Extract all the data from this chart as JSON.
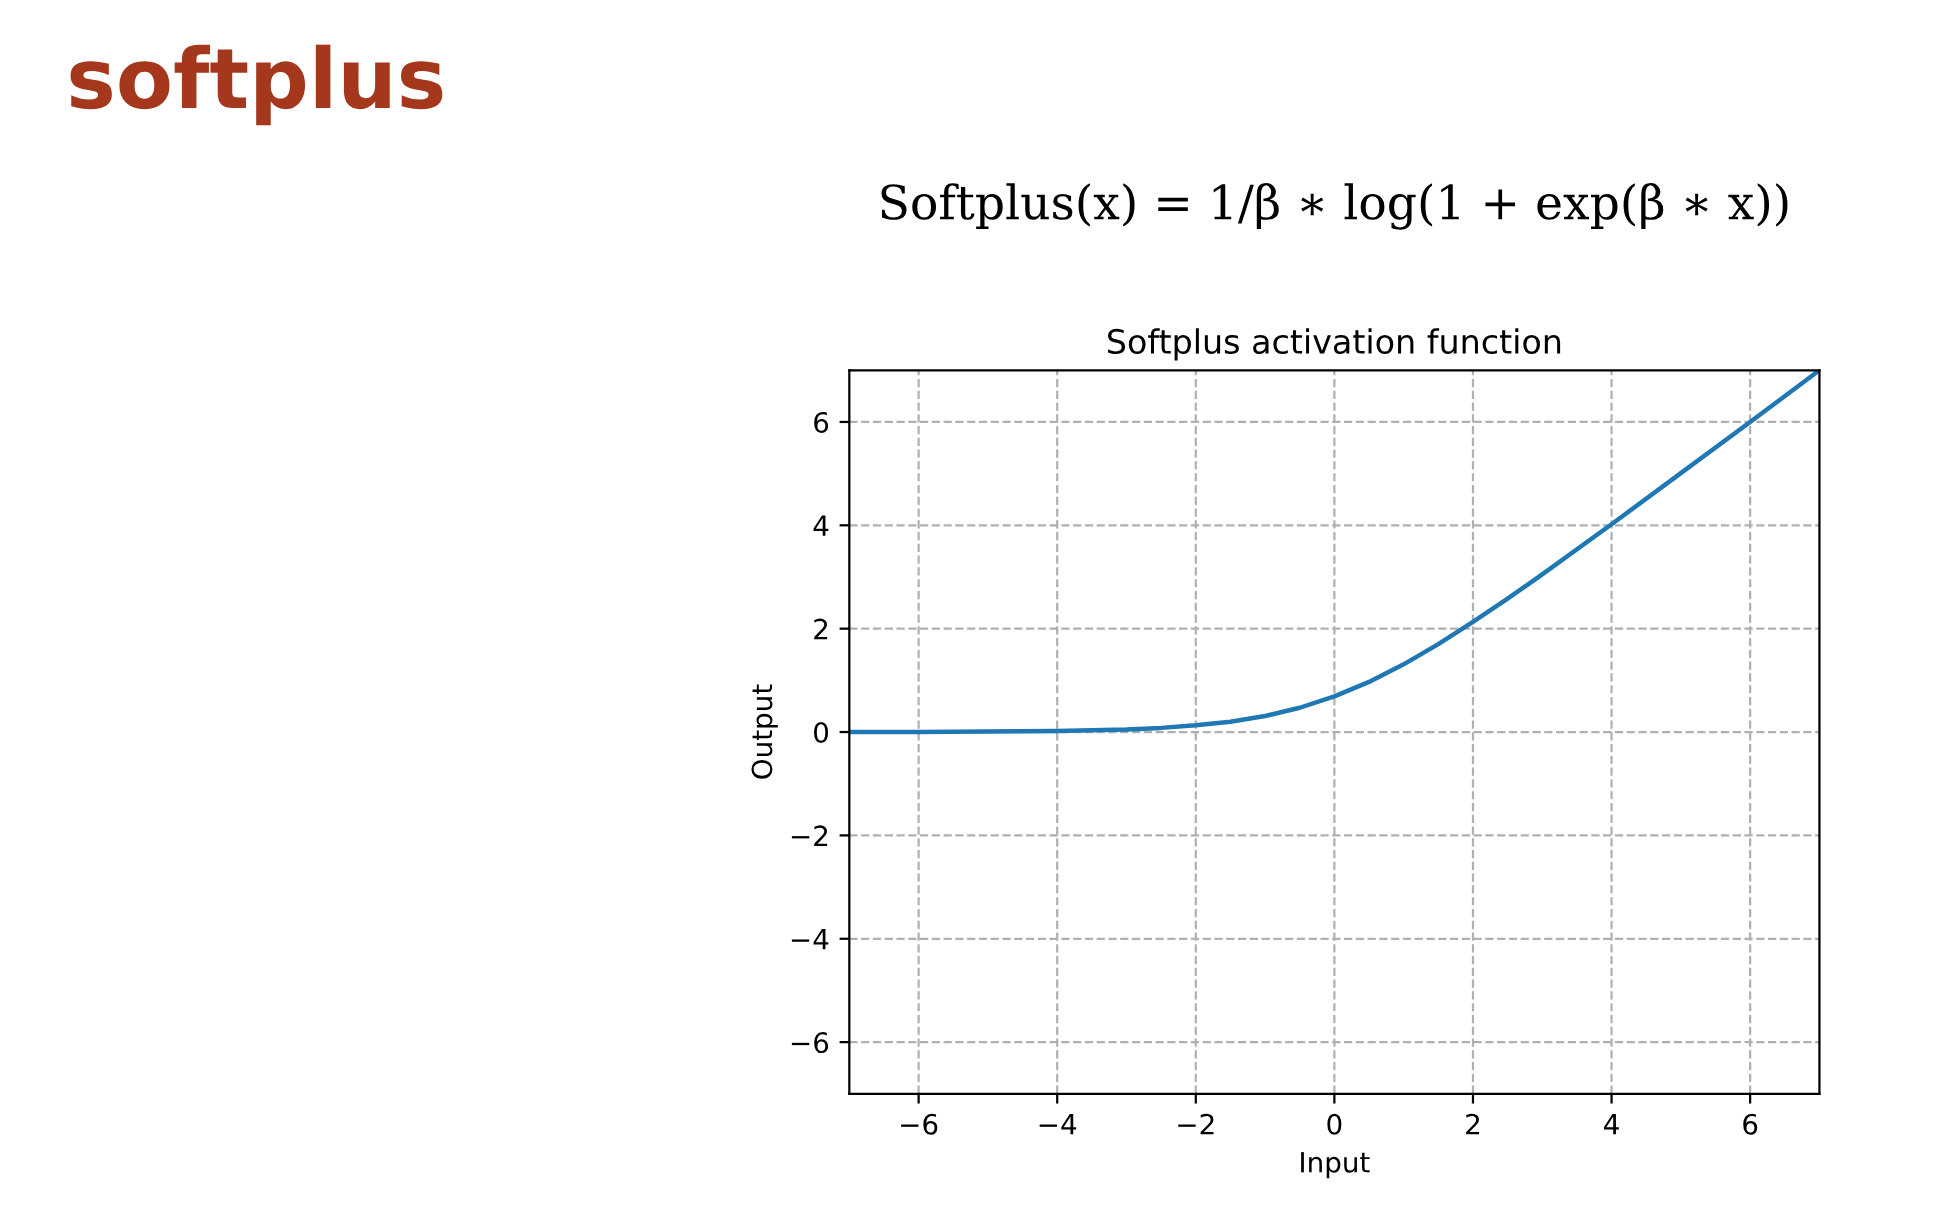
{
  "chart_data": {
    "type": "line",
    "title": "softplus",
    "subtitle": "Softplus activation function",
    "xlabel": "Input",
    "ylabel": "Output",
    "annotations": [
      "Softplus(x) = 1/β ∗ log(1 + exp(β ∗ x))"
    ],
    "x": [
      -7,
      -6,
      -5,
      -4,
      -3,
      -2.5,
      -2,
      -1.5,
      -1,
      -0.5,
      0,
      0.5,
      1,
      1.5,
      2,
      2.5,
      3,
      4,
      5,
      6,
      7
    ],
    "series": [
      {
        "color": "#1f77b4",
        "values": [
          0.0,
          0.0,
          0.01,
          0.02,
          0.05,
          0.08,
          0.13,
          0.2,
          0.31,
          0.47,
          0.69,
          0.97,
          1.31,
          1.7,
          2.13,
          2.58,
          3.05,
          4.02,
          5.01,
          6.0,
          7.0
        ]
      }
    ],
    "xlim": [
      -7,
      7
    ],
    "ylim": [
      -7,
      7
    ],
    "xticks": [
      -6,
      -4,
      -2,
      0,
      2,
      4,
      6
    ],
    "yticks": [
      -6,
      -4,
      -2,
      0,
      2,
      4,
      6
    ],
    "grid": true,
    "line_style": "solid",
    "marker": "none",
    "legend": false
  }
}
